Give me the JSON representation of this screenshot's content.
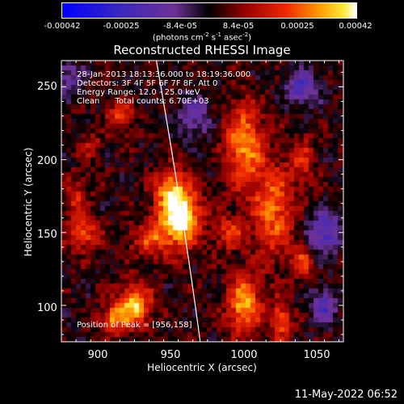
{
  "colorbar": {
    "ticks": [
      "-0.00042",
      "-0.00025",
      "-8.4e-05",
      "8.4e-05",
      "0.00025",
      "0.00042"
    ],
    "units_prefix": "(photons cm",
    "units_e1": "-2",
    "units_s": " s",
    "units_e2": "-1",
    "units_asec": " asec",
    "units_e3": "-2",
    "units_suffix": ")",
    "range": [
      -0.00042,
      0.00042
    ]
  },
  "chart_data": {
    "type": "heatmap",
    "title": "Reconstructed RHESSI Image",
    "xlabel": "Heliocentric X (arcsec)",
    "ylabel": "Heliocentric Y (arcsec)",
    "xlim": [
      875,
      1068
    ],
    "ylim": [
      75,
      268
    ],
    "xticks": [
      "900",
      "950",
      "1000",
      "1050"
    ],
    "yticks": [
      "100",
      "150",
      "200",
      "250"
    ],
    "xtick_values": [
      900,
      950,
      1000,
      1050
    ],
    "ytick_values": [
      100,
      150,
      200,
      250
    ],
    "peak_position": [
      956,
      158
    ],
    "info_lines": [
      "28-Jan-2013 18:13:36.000 to 18:19:36.000",
      "Detectors: 3F 4F 5F 6F 7F 8F, Att 0",
      "Energy Range: 12.0 - 25.0 keV",
      "Clean      Total counts: 6.70E+03"
    ],
    "peak_label": "Position of Peak = [956,158]",
    "sources": [
      {
        "x": 956,
        "y": 160,
        "sx": 10,
        "sy": 14,
        "amp": 1.0
      },
      {
        "x": 950,
        "y": 180,
        "sx": 8,
        "sy": 10,
        "amp": 0.55
      },
      {
        "x": 935,
        "y": 145,
        "sx": 9,
        "sy": 8,
        "amp": 0.45
      },
      {
        "x": 1000,
        "y": 210,
        "sx": 9,
        "sy": 20,
        "amp": 0.7
      },
      {
        "x": 1020,
        "y": 165,
        "sx": 10,
        "sy": 22,
        "amp": 0.6
      },
      {
        "x": 990,
        "y": 150,
        "sx": 7,
        "sy": 8,
        "amp": 0.45
      },
      {
        "x": 925,
        "y": 100,
        "sx": 8,
        "sy": 10,
        "amp": 0.8
      },
      {
        "x": 910,
        "y": 90,
        "sx": 6,
        "sy": 7,
        "amp": 0.6
      },
      {
        "x": 1000,
        "y": 100,
        "sx": 8,
        "sy": 14,
        "amp": 0.75
      },
      {
        "x": 1025,
        "y": 90,
        "sx": 5,
        "sy": 10,
        "amp": 0.55
      },
      {
        "x": 890,
        "y": 150,
        "sx": 8,
        "sy": 8,
        "amp": 0.55
      },
      {
        "x": 885,
        "y": 175,
        "sx": 6,
        "sy": 10,
        "amp": 0.35
      },
      {
        "x": 915,
        "y": 230,
        "sx": 6,
        "sy": 8,
        "amp": 0.45
      },
      {
        "x": 1040,
        "y": 200,
        "sx": 6,
        "sy": 12,
        "amp": 0.35
      },
      {
        "x": 1040,
        "y": 130,
        "sx": 5,
        "sy": 8,
        "amp": 0.45
      },
      {
        "x": 895,
        "y": 210,
        "sx": 5,
        "sy": 6,
        "amp": 0.3
      }
    ],
    "negative_sources": [
      {
        "x": 1055,
        "y": 150,
        "sx": 8,
        "sy": 10,
        "amp": 0.6
      },
      {
        "x": 1040,
        "y": 250,
        "sx": 8,
        "sy": 8,
        "amp": 0.55
      },
      {
        "x": 880,
        "y": 255,
        "sx": 6,
        "sy": 8,
        "amp": 0.4
      },
      {
        "x": 1055,
        "y": 100,
        "sx": 6,
        "sy": 8,
        "amp": 0.5
      },
      {
        "x": 965,
        "y": 230,
        "sx": 8,
        "sy": 10,
        "amp": 0.4
      }
    ],
    "limb_curve": [
      [
        940,
        268
      ],
      [
        958,
        165
      ],
      [
        970,
        75
      ]
    ]
  },
  "timestamp": "11-May-2022 06:52"
}
